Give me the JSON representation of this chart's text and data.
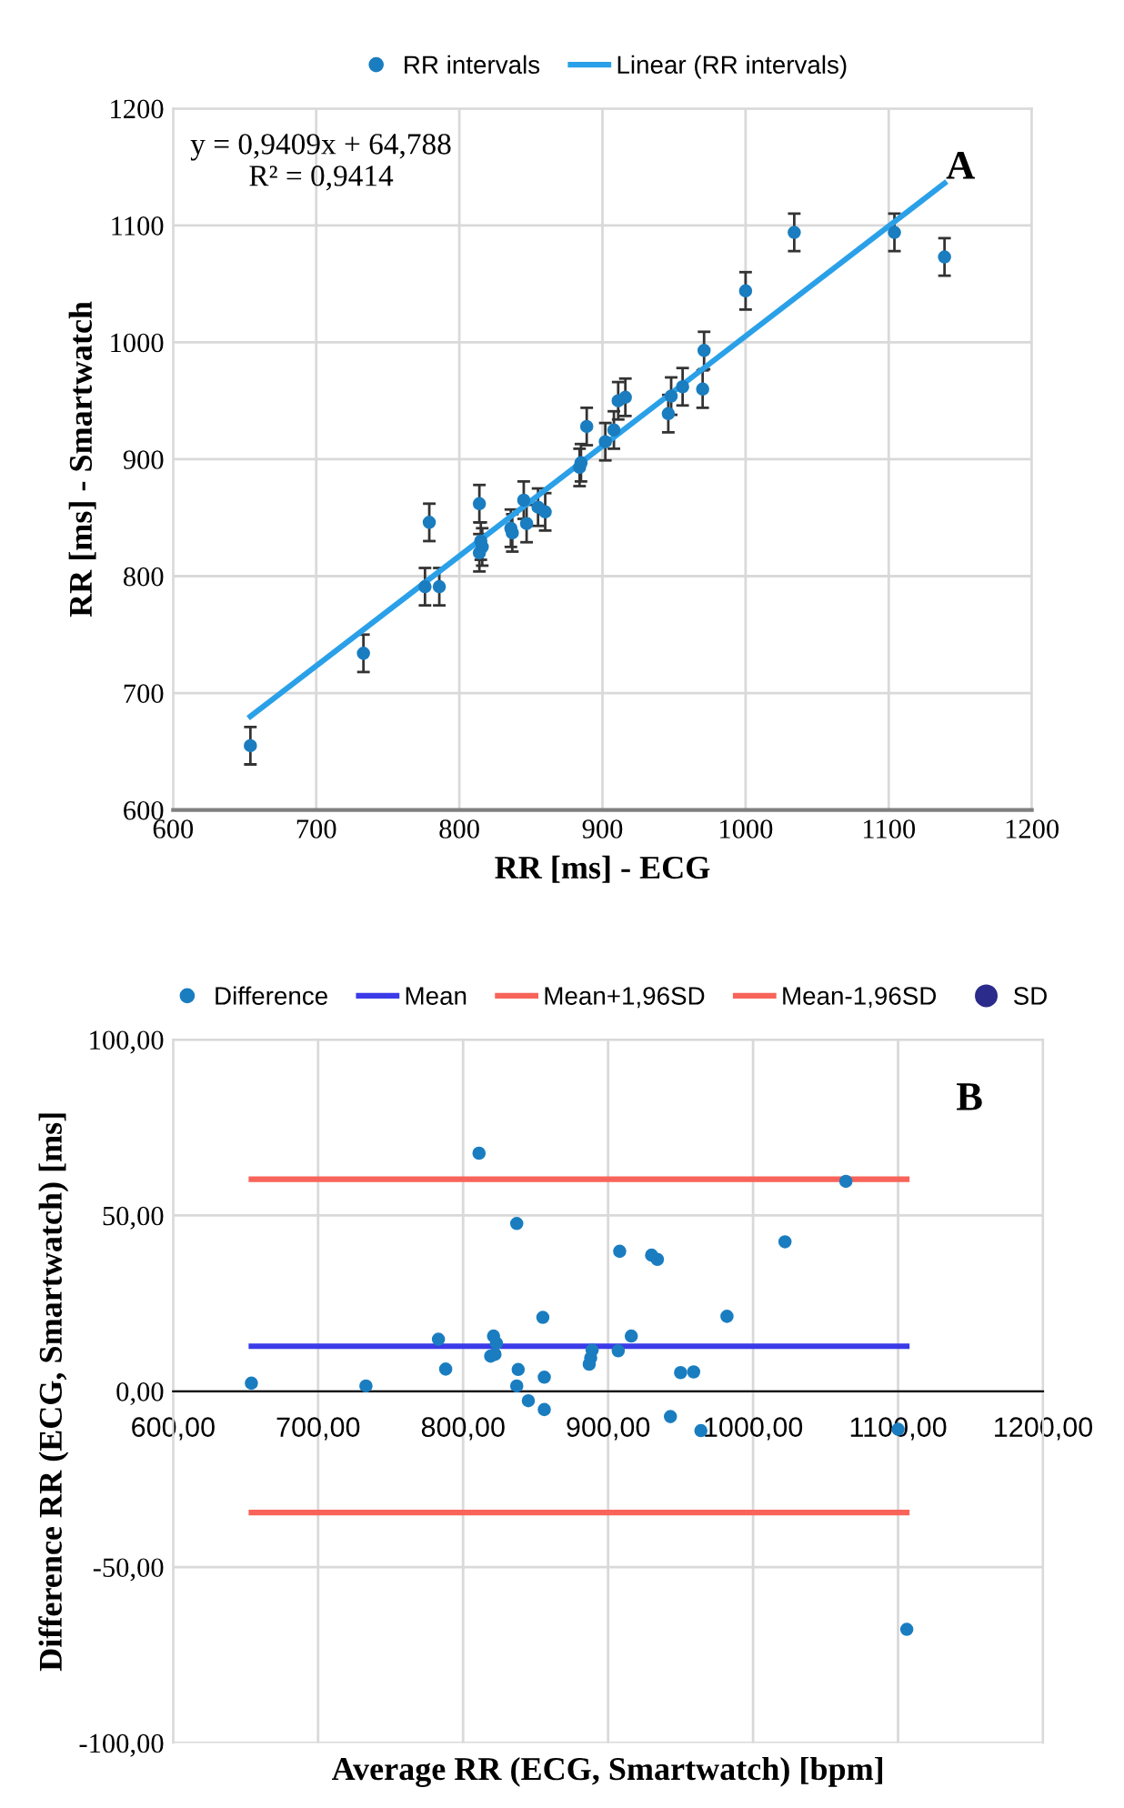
{
  "chart_data": [
    {
      "type": "scatter",
      "xlabel": "RR [ms] - ECG",
      "ylabel": "RR [ms] - Smartwatch",
      "annotations": [
        "y = 0,9409x + 64,788\nR² = 0,9414",
        "A"
      ],
      "xlim": [
        600,
        1200
      ],
      "ylim": [
        600,
        1200
      ],
      "xticks": [
        600,
        700,
        800,
        900,
        1000,
        1100,
        1200
      ],
      "yticks": [
        600,
        700,
        800,
        900,
        1000,
        1100,
        1200
      ],
      "grid": true,
      "legend": "top",
      "series": [
        {
          "name": "RR intervals",
          "color": "#1a7dc0",
          "marker": "circle",
          "x": [
            654,
            733,
            779,
            776,
            786,
            814,
            815,
            816,
            814,
            836,
            837,
            845,
            847,
            855,
            860,
            884,
            885,
            889,
            902,
            908,
            911,
            916,
            946,
            948,
            956,
            970,
            971,
            1000,
            1034,
            1104,
            1139
          ],
          "values": [
            655,
            734,
            846,
            791,
            791,
            862,
            830,
            825,
            820,
            841,
            837,
            865,
            845,
            859,
            855,
            893,
            897,
            928,
            915,
            925,
            950,
            953,
            939,
            954,
            962,
            960,
            993,
            1044,
            1094,
            1094,
            1073
          ],
          "errors": [
            16,
            16,
            16,
            16,
            16,
            16,
            16,
            16,
            16,
            16,
            16,
            16,
            16,
            16,
            16,
            16,
            16,
            16,
            16,
            16,
            16,
            16,
            16,
            16,
            16,
            16,
            16,
            16,
            16,
            16,
            16
          ]
        },
        {
          "name": "Linear (RR intervals)",
          "type": "line",
          "color": "#2aa0e8",
          "x": [
            654,
            1139
          ],
          "values": [
            680,
            1136
          ]
        }
      ]
    },
    {
      "type": "scatter",
      "xlabel": "Average RR (ECG, Smartwatch) [bpm]",
      "ylabel": "Difference RR (ECG, Smartwatch) [ms]",
      "annotations": [
        "B"
      ],
      "xlim": [
        600,
        1200
      ],
      "ylim": [
        -100,
        100
      ],
      "xticks": [
        {
          "value": 600,
          "label": "600,00"
        },
        {
          "value": 700,
          "label": "700,00"
        },
        {
          "value": 800,
          "label": "800,00"
        },
        {
          "value": 900,
          "label": "900,00"
        },
        {
          "value": 1000,
          "label": "1000,00"
        },
        {
          "value": 1100,
          "label": "1100,00"
        },
        {
          "value": 1200,
          "label": "1200,00"
        }
      ],
      "yticks": [
        {
          "value": -100,
          "label": "-100,00"
        },
        {
          "value": -50,
          "label": "-50,00"
        },
        {
          "value": 0,
          "label": "0,00"
        },
        {
          "value": 50,
          "label": "50,00"
        },
        {
          "value": 100,
          "label": "100,00"
        }
      ],
      "grid": true,
      "legend": "top",
      "series": [
        {
          "name": "Difference",
          "color": "#1a7dc0",
          "marker": "circle",
          "x": [
            654,
            733,
            783,
            788,
            811,
            819,
            821,
            822,
            823,
            837,
            837,
            838,
            845,
            855,
            856,
            856,
            887,
            888,
            889,
            908,
            907,
            916,
            930,
            934,
            943,
            950,
            959,
            964,
            982,
            1022,
            1064,
            1100,
            1106
          ],
          "values": [
            2.3,
            1.5,
            14.8,
            6.3,
            67.7,
            10,
            15.7,
            10.5,
            13.7,
            47.7,
            1.5,
            6.2,
            -2.7,
            21,
            4,
            -5.2,
            7.7,
            9.5,
            11.7,
            39.8,
            11.5,
            15.7,
            38.7,
            37.5,
            -7.2,
            5.3,
            5.5,
            -11.2,
            21.3,
            42.5,
            59.7,
            -10.8,
            -67.7
          ]
        },
        {
          "name": "Mean",
          "type": "line",
          "color": "#3b3be8",
          "x": [
            654,
            1106
          ],
          "values": [
            12.8,
            12.8
          ]
        },
        {
          "name": "Mean+1,96SD",
          "type": "line",
          "color": "#f8645a",
          "x": [
            654,
            1106
          ],
          "values": [
            60.3,
            60.3
          ]
        },
        {
          "name": "Mean-1,96SD",
          "type": "line",
          "color": "#f8645a",
          "x": [
            654,
            1106
          ],
          "values": [
            -34.5,
            -34.5
          ]
        },
        {
          "name": "SD",
          "type": "scatter",
          "color": "#2b2b8c",
          "marker": "circle"
        }
      ]
    }
  ]
}
